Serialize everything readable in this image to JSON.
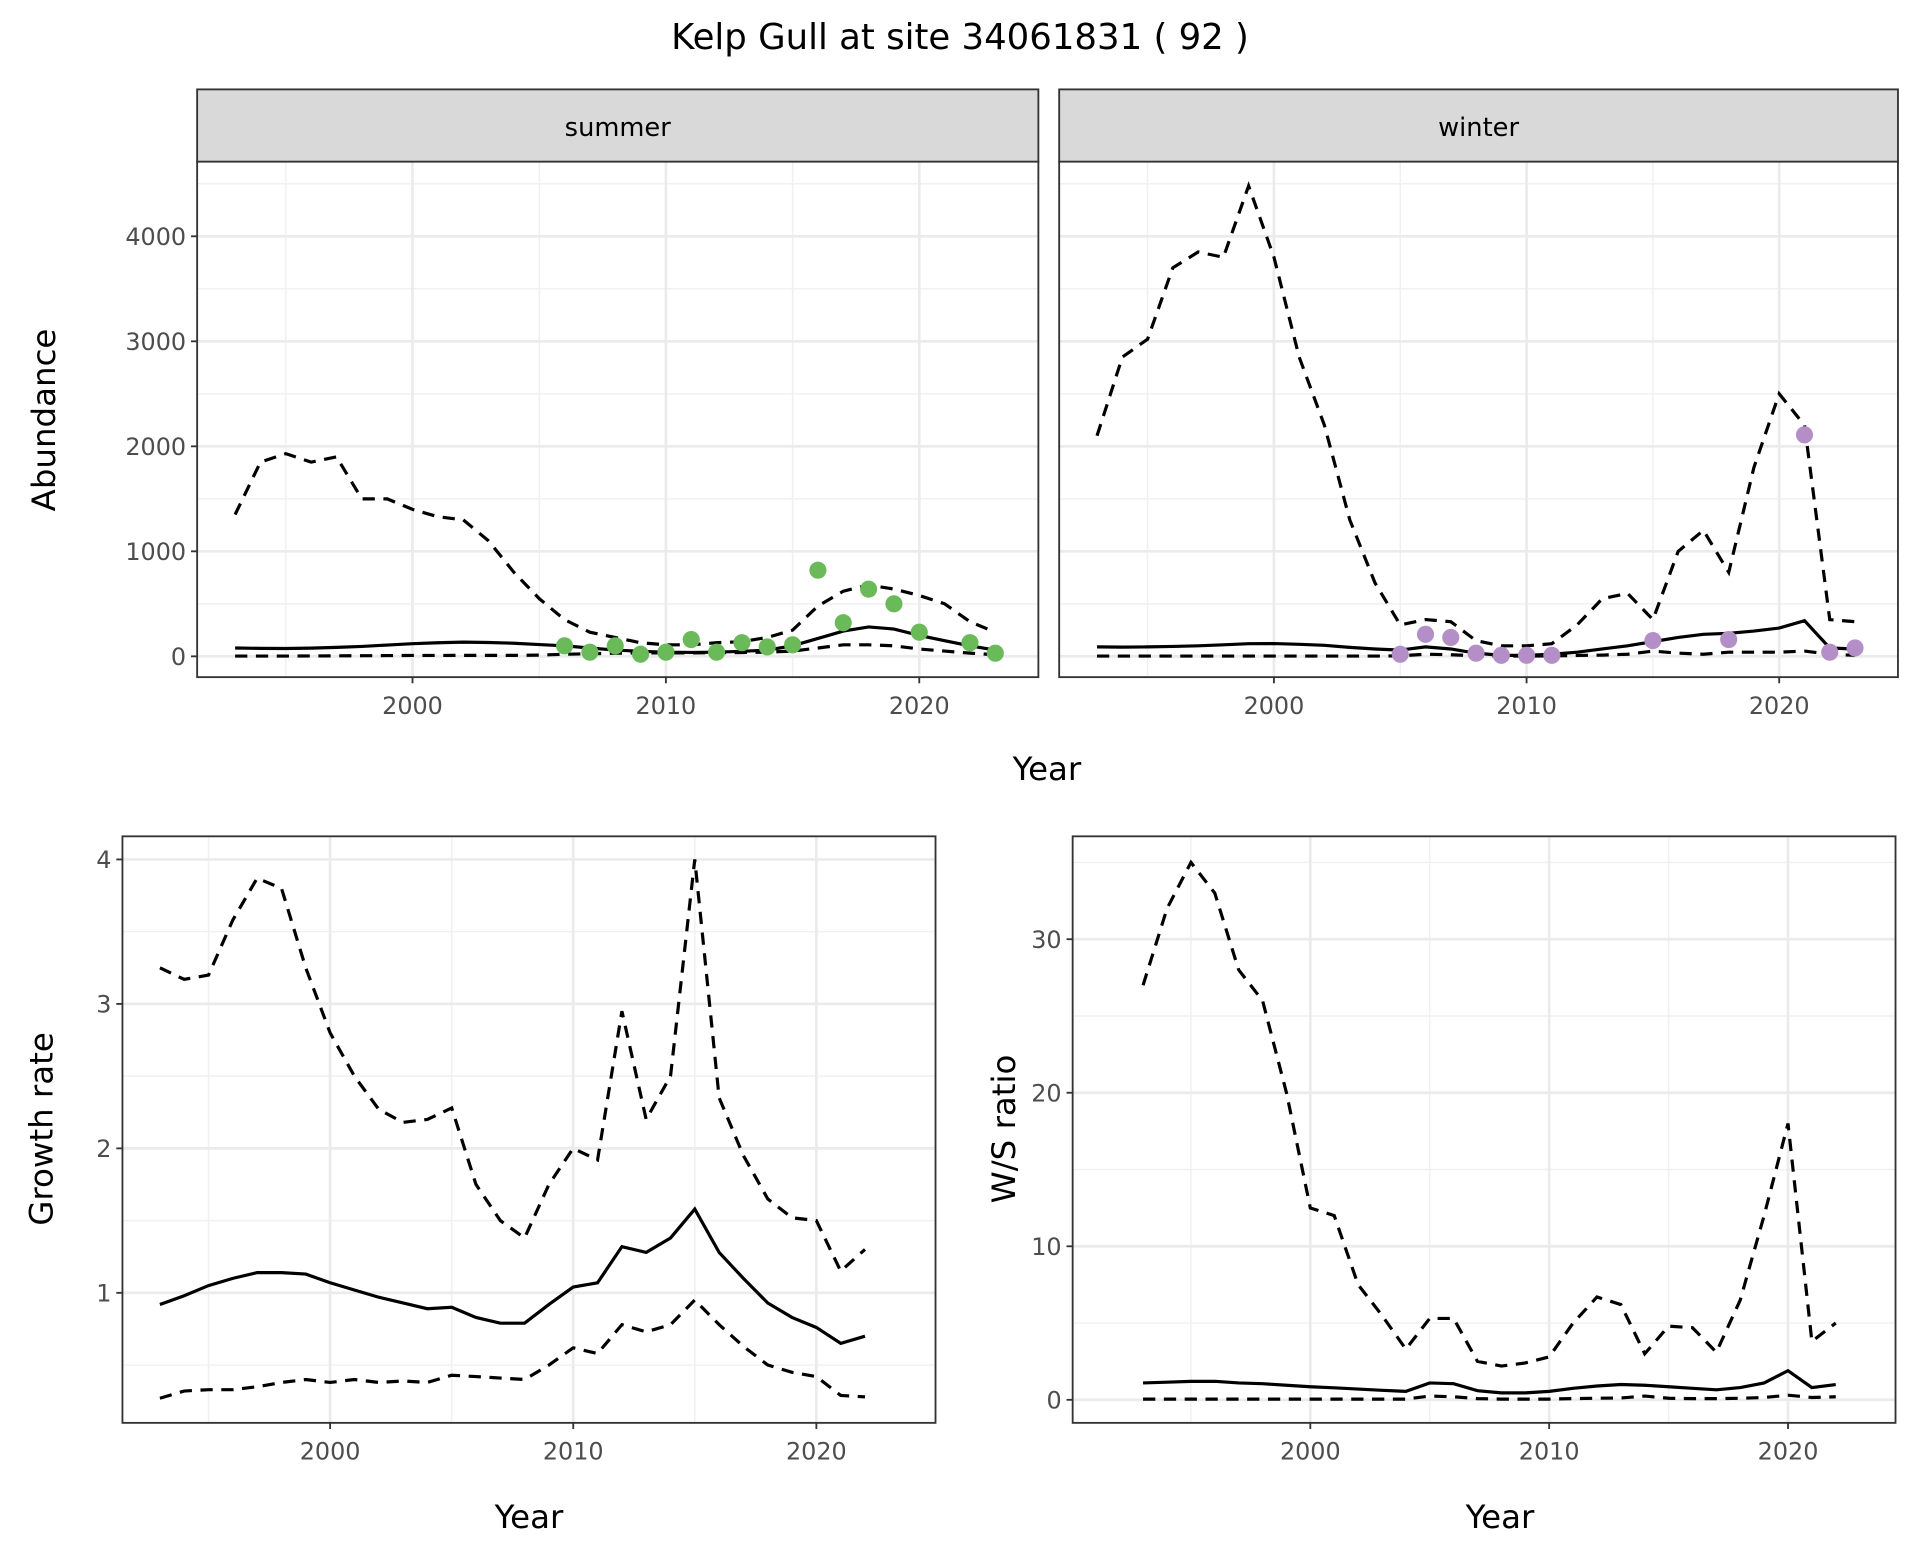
{
  "title": "Kelp Gull at site 34061831 ( 92 )",
  "chart_data": [
    {
      "type": "line",
      "facets": [
        "summer",
        "winter"
      ],
      "xlabel": "Year",
      "ylabel": "Abundance",
      "xlim": [
        1991.5,
        2024.7
      ],
      "ylim": [
        -198,
        4711
      ],
      "xticks": [
        2000,
        2010,
        2020
      ],
      "yticks": [
        0,
        1000,
        2000,
        3000,
        4000
      ],
      "grid": true,
      "colors": {
        "summer_points": "#6aba5a",
        "winter_points": "#b48fc7",
        "lines": "#000000"
      },
      "panels": {
        "summer": {
          "x": [
            1993,
            1994,
            1995,
            1996,
            1997,
            1998,
            1999,
            2000,
            2001,
            2002,
            2003,
            2004,
            2005,
            2006,
            2007,
            2008,
            2009,
            2010,
            2011,
            2012,
            2013,
            2014,
            2015,
            2016,
            2017,
            2018,
            2019,
            2020,
            2021,
            2022,
            2023
          ],
          "upper": [
            1350,
            1850,
            1930,
            1850,
            1900,
            1500,
            1500,
            1400,
            1330,
            1300,
            1100,
            800,
            550,
            350,
            230,
            180,
            130,
            110,
            110,
            130,
            140,
            180,
            250,
            480,
            620,
            680,
            640,
            580,
            500,
            330,
            230
          ],
          "median": [
            80,
            76,
            75,
            78,
            85,
            95,
            108,
            120,
            130,
            135,
            132,
            125,
            112,
            100,
            80,
            60,
            48,
            40,
            38,
            40,
            48,
            60,
            100,
            170,
            240,
            280,
            260,
            200,
            150,
            100,
            60
          ],
          "lower": [
            3,
            3,
            3,
            4,
            5,
            6,
            7,
            8,
            8,
            9,
            10,
            10,
            12,
            20,
            25,
            30,
            32,
            33,
            33,
            34,
            36,
            40,
            50,
            80,
            110,
            110,
            100,
            70,
            50,
            30,
            15
          ],
          "points": {
            "x": [
              2006,
              2007,
              2008,
              2009,
              2010,
              2011,
              2012,
              2013,
              2014,
              2015,
              2016,
              2017,
              2018,
              2019,
              2020,
              2022,
              2023
            ],
            "y": [
              100,
              40,
              100,
              20,
              40,
              160,
              40,
              130,
              90,
              110,
              820,
              320,
              640,
              500,
              230,
              130,
              30
            ]
          }
        },
        "winter": {
          "x": [
            1993,
            1994,
            1995,
            1996,
            1997,
            1998,
            1999,
            2000,
            2001,
            2002,
            2003,
            2004,
            2005,
            2006,
            2007,
            2008,
            2009,
            2010,
            2011,
            2012,
            2013,
            2014,
            2015,
            2016,
            2017,
            2018,
            2019,
            2020,
            2021,
            2022,
            2023
          ],
          "upper": [
            2100,
            2850,
            3020,
            3700,
            3850,
            3800,
            4480,
            3800,
            2850,
            2200,
            1300,
            700,
            300,
            350,
            330,
            150,
            100,
            100,
            120,
            300,
            550,
            600,
            350,
            1000,
            1200,
            800,
            1800,
            2500,
            2200,
            350,
            330
          ],
          "median": [
            90,
            88,
            90,
            95,
            100,
            110,
            120,
            122,
            115,
            105,
            85,
            70,
            60,
            90,
            70,
            30,
            10,
            10,
            20,
            40,
            70,
            100,
            140,
            180,
            210,
            220,
            240,
            270,
            340,
            80,
            70
          ],
          "lower": [
            3,
            3,
            3,
            3,
            3,
            3,
            3,
            3,
            3,
            3,
            3,
            3,
            5,
            20,
            15,
            5,
            3,
            3,
            5,
            8,
            12,
            20,
            50,
            30,
            20,
            40,
            40,
            40,
            50,
            20,
            10
          ],
          "points": {
            "x": [
              2005,
              2006,
              2007,
              2008,
              2009,
              2010,
              2011,
              2015,
              2018,
              2021,
              2022,
              2023
            ],
            "y": [
              20,
              210,
              180,
              30,
              10,
              10,
              10,
              150,
              160,
              2110,
              40,
              80
            ]
          }
        }
      }
    },
    {
      "type": "line",
      "xlabel": "Year",
      "ylabel": "Growth rate",
      "xlim": [
        1991.46,
        2024.9
      ],
      "ylim": [
        0.1,
        4.16
      ],
      "xticks": [
        2000,
        2010,
        2020
      ],
      "yticks": [
        1,
        2,
        3,
        4
      ],
      "grid": true,
      "x": [
        1993,
        1994,
        1995,
        1996,
        1997,
        1998,
        1999,
        2000,
        2001,
        2002,
        2003,
        2004,
        2005,
        2006,
        2007,
        2008,
        2009,
        2010,
        2011,
        2012,
        2013,
        2014,
        2015,
        2016,
        2017,
        2018,
        2019,
        2020,
        2021,
        2022
      ],
      "upper": [
        3.25,
        3.17,
        3.2,
        3.58,
        3.87,
        3.8,
        3.25,
        2.8,
        2.5,
        2.27,
        2.18,
        2.2,
        2.28,
        1.75,
        1.5,
        1.38,
        1.75,
        2.0,
        1.92,
        2.95,
        2.2,
        2.5,
        4.0,
        2.35,
        1.95,
        1.65,
        1.52,
        1.5,
        1.15,
        1.3
      ],
      "median": [
        0.92,
        0.98,
        1.05,
        1.1,
        1.14,
        1.14,
        1.13,
        1.07,
        1.02,
        0.97,
        0.93,
        0.89,
        0.9,
        0.83,
        0.79,
        0.79,
        0.92,
        1.04,
        1.07,
        1.32,
        1.28,
        1.38,
        1.58,
        1.28,
        1.1,
        0.93,
        0.83,
        0.76,
        0.65,
        0.7
      ],
      "lower": [
        0.27,
        0.32,
        0.33,
        0.33,
        0.35,
        0.38,
        0.4,
        0.38,
        0.4,
        0.38,
        0.39,
        0.38,
        0.43,
        0.42,
        0.41,
        0.4,
        0.5,
        0.62,
        0.58,
        0.78,
        0.73,
        0.78,
        0.95,
        0.78,
        0.63,
        0.5,
        0.45,
        0.42,
        0.29,
        0.28
      ]
    },
    {
      "type": "line",
      "xlabel": "Year",
      "ylabel": "W/S ratio",
      "xlim": [
        1990.05,
        2024.5
      ],
      "ylim": [
        -1.5,
        36.7
      ],
      "xticks": [
        2000,
        2010,
        2020
      ],
      "yticks": [
        0,
        10,
        20,
        30
      ],
      "grid": true,
      "x": [
        1993,
        1994,
        1995,
        1996,
        1997,
        1998,
        1999,
        2000,
        2001,
        2002,
        2003,
        2004,
        2005,
        2006,
        2007,
        2008,
        2009,
        2010,
        2011,
        2012,
        2013,
        2014,
        2015,
        2016,
        2017,
        2018,
        2019,
        2020,
        2021,
        2022
      ],
      "upper": [
        27,
        32,
        35,
        33,
        28,
        26,
        20,
        12.5,
        12,
        7.5,
        5.5,
        3.3,
        5.3,
        5.3,
        2.5,
        2.2,
        2.4,
        2.8,
        5,
        6.7,
        6.2,
        3,
        4.8,
        4.7,
        3.1,
        6.5,
        12,
        18,
        3.8,
        5
      ],
      "median": [
        1.1,
        1.15,
        1.2,
        1.2,
        1.1,
        1.05,
        0.95,
        0.85,
        0.78,
        0.7,
        0.62,
        0.55,
        1.1,
        1.05,
        0.6,
        0.45,
        0.45,
        0.55,
        0.75,
        0.9,
        1.0,
        0.95,
        0.85,
        0.75,
        0.65,
        0.8,
        1.1,
        1.9,
        0.8,
        1.0
      ],
      "lower": [
        0.05,
        0.05,
        0.05,
        0.05,
        0.05,
        0.05,
        0.05,
        0.05,
        0.05,
        0.05,
        0.05,
        0.05,
        0.25,
        0.2,
        0.08,
        0.05,
        0.05,
        0.05,
        0.08,
        0.1,
        0.12,
        0.25,
        0.1,
        0.08,
        0.08,
        0.1,
        0.15,
        0.3,
        0.15,
        0.2
      ]
    }
  ]
}
